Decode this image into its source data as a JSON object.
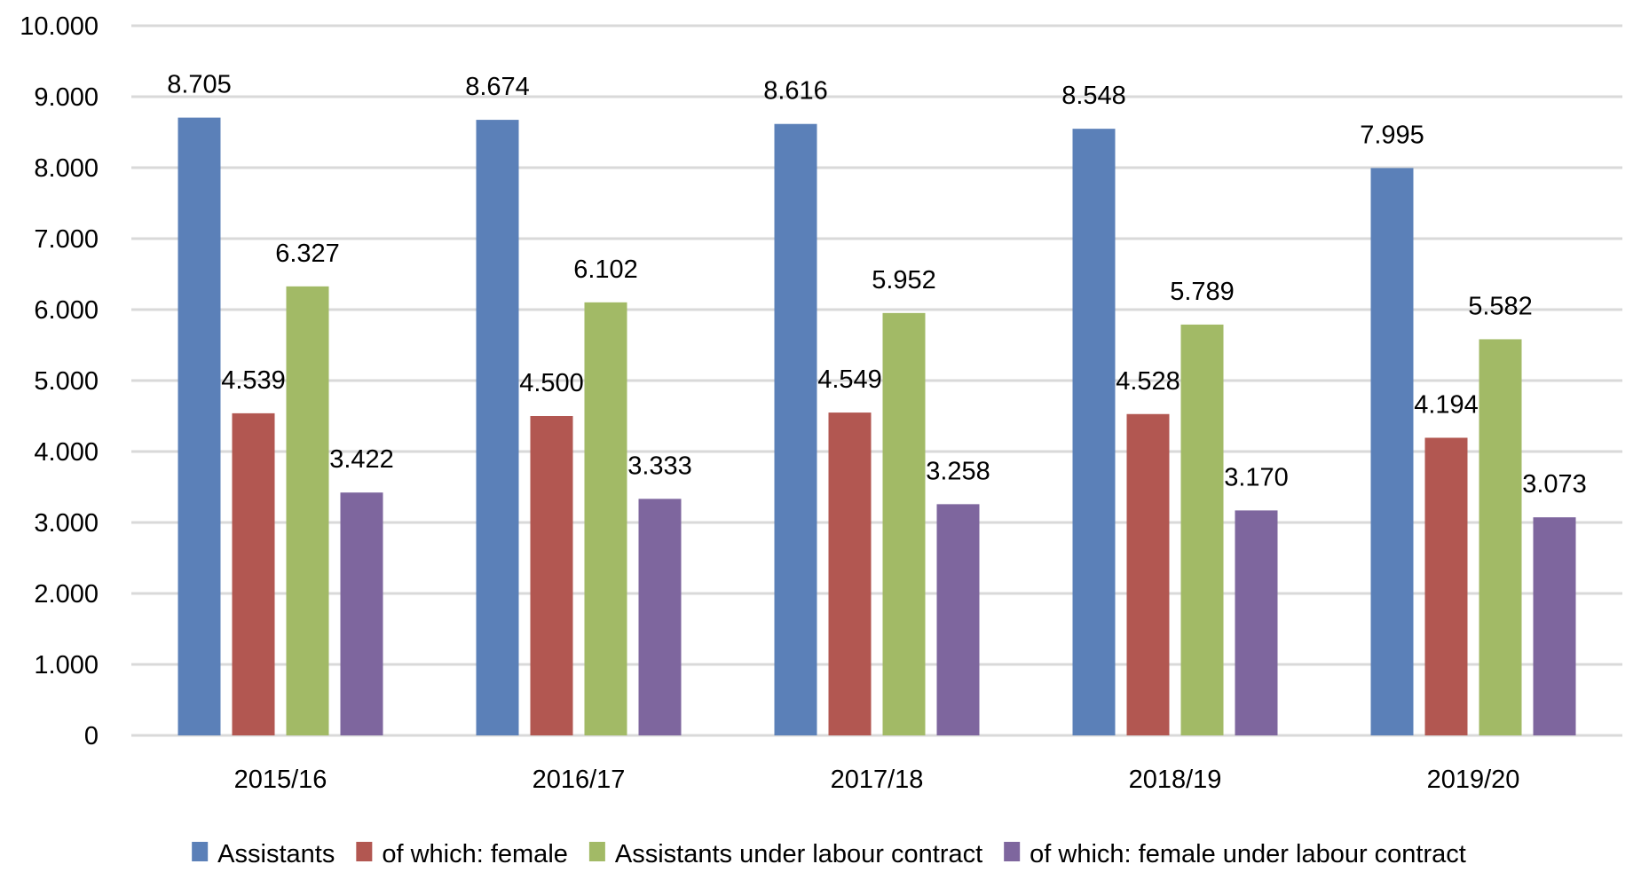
{
  "chart_data": {
    "type": "bar",
    "title": "",
    "xlabel": "",
    "ylabel": "",
    "ylim": [
      0,
      10000
    ],
    "y_ticks": [
      {
        "value": 0,
        "label": "0"
      },
      {
        "value": 1000,
        "label": "1.000"
      },
      {
        "value": 2000,
        "label": "2.000"
      },
      {
        "value": 3000,
        "label": "3.000"
      },
      {
        "value": 4000,
        "label": "4.000"
      },
      {
        "value": 5000,
        "label": "5.000"
      },
      {
        "value": 6000,
        "label": "6.000"
      },
      {
        "value": 7000,
        "label": "7.000"
      },
      {
        "value": 8000,
        "label": "8.000"
      },
      {
        "value": 9000,
        "label": "9.000"
      },
      {
        "value": 10000,
        "label": "10.000"
      }
    ],
    "grid": true,
    "legend_position": "bottom",
    "categories": [
      "2015/16",
      "2016/17",
      "2017/18",
      "2018/19",
      "2019/20"
    ],
    "series": [
      {
        "name": "Assistants",
        "color": "#5b80b8",
        "values": [
          8705,
          8674,
          8616,
          8548,
          7995
        ],
        "labels": [
          "8.705",
          "8.674",
          "8.616",
          "8.548",
          "7.995"
        ]
      },
      {
        "name": "of which: female",
        "color": "#b25751",
        "values": [
          4539,
          4500,
          4549,
          4528,
          4194
        ],
        "labels": [
          "4.539",
          "4.500",
          "4.549",
          "4.528",
          "4.194"
        ]
      },
      {
        "name": "Assistants under labour contract",
        "color": "#a2ba66",
        "values": [
          6327,
          6102,
          5952,
          5789,
          5582
        ],
        "labels": [
          "6.327",
          "6.102",
          "5.952",
          "5.789",
          "5.582"
        ]
      },
      {
        "name": "of which: female under labour contract",
        "color": "#7e669e",
        "values": [
          3422,
          3333,
          3258,
          3170,
          3073
        ],
        "labels": [
          "3.422",
          "3.333",
          "3.258",
          "3.170",
          "3.073"
        ]
      }
    ],
    "gridline_color": "#d9d9d9"
  }
}
